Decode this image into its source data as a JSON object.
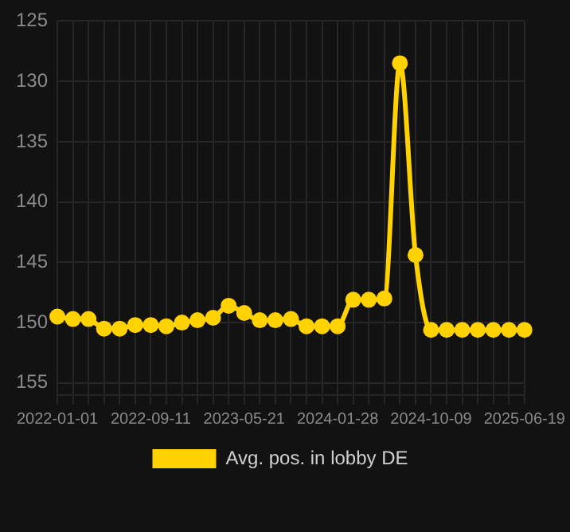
{
  "chart_data": {
    "type": "line",
    "categories": [
      "2022-01-01",
      null,
      null,
      null,
      null,
      null,
      "2022-09-11",
      null,
      null,
      null,
      null,
      null,
      "2023-05-21",
      null,
      null,
      null,
      null,
      null,
      "2024-01-28",
      null,
      null,
      null,
      null,
      null,
      "2024-10-09",
      null,
      null,
      null,
      null,
      null,
      "2025-06-19"
    ],
    "series": [
      {
        "name": "Avg. pos. in lobby DE",
        "color": "#ffd200",
        "values": [
          149.5,
          149.7,
          149.7,
          150.5,
          150.5,
          150.2,
          150.2,
          150.3,
          150.0,
          149.8,
          149.6,
          148.6,
          149.2,
          149.8,
          149.8,
          149.7,
          150.3,
          150.3,
          150.3,
          148.1,
          148.1,
          148.0,
          128.5,
          144.4,
          150.6,
          150.6,
          150.6,
          150.6,
          150.6,
          150.6,
          150.6
        ]
      }
    ],
    "ylim": [
      156,
      125
    ],
    "yticks": [
      125,
      130,
      135,
      140,
      145,
      150,
      155
    ],
    "grid": true,
    "legend": "bottom",
    "marker": "circle",
    "line_style": "solid"
  }
}
